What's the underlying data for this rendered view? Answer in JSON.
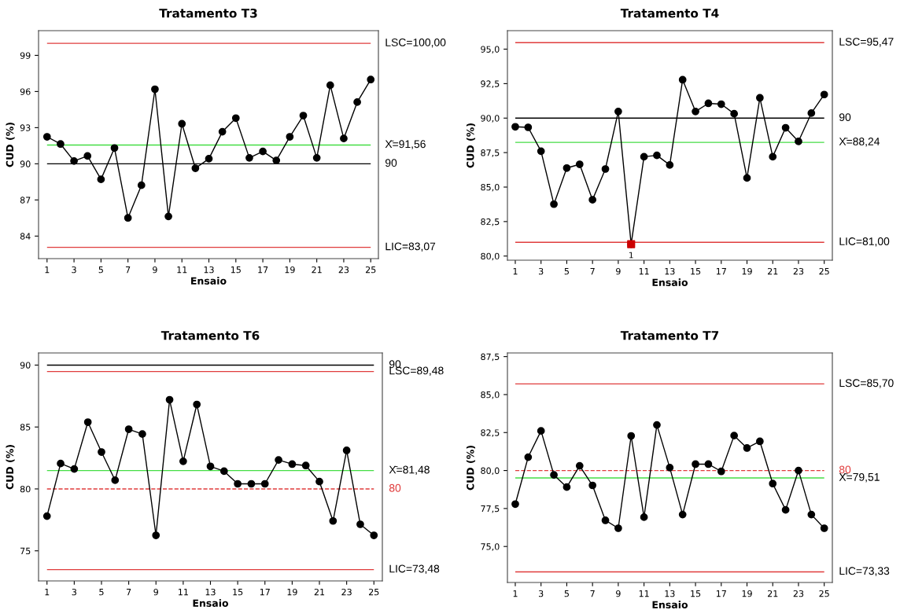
{
  "chart_data": [
    {
      "type": "line",
      "title": "Tratamento T3",
      "xlabel": "Ensaio",
      "ylabel": "CUD (%)",
      "x": [
        1,
        2,
        3,
        4,
        5,
        6,
        7,
        8,
        9,
        10,
        11,
        12,
        13,
        14,
        15,
        16,
        17,
        18,
        19,
        20,
        21,
        22,
        23,
        24,
        25
      ],
      "marker": "circle",
      "grid": false,
      "legend": false,
      "series": [
        {
          "color": "#000000",
          "values": [
            92.24,
            91.64,
            90.23,
            90.65,
            88.71,
            91.31,
            85.51,
            88.22,
            96.19,
            85.63,
            93.32,
            89.63,
            90.42,
            92.66,
            93.79,
            90.49,
            91.03,
            90.28,
            92.24,
            94.0,
            90.49,
            96.52,
            92.1,
            95.12,
            96.99
          ]
        }
      ],
      "xlim": [
        0.37,
        25.57
      ],
      "xticks": [
        1,
        3,
        5,
        7,
        9,
        11,
        13,
        15,
        17,
        19,
        21,
        23,
        25
      ],
      "ylim": [
        82.13,
        101.05
      ],
      "yticks": [
        84,
        87,
        90,
        93,
        96,
        99
      ],
      "ref_lines": [
        {
          "axis": "y",
          "value": 100.0,
          "label": "LSC=100,00",
          "color": "#e03c3c",
          "line_style": "solid"
        },
        {
          "axis": "y",
          "value": 91.56,
          "label": "X̄=91,56",
          "color": "#44dd44",
          "line_style": "solid"
        },
        {
          "axis": "y",
          "value": 90,
          "label": "90",
          "color": "#000000",
          "line_style": "solid"
        },
        {
          "axis": "y",
          "value": 83.07,
          "label": "LIC=83,07",
          "color": "#e03c3c",
          "line_style": "solid"
        }
      ]
    },
    {
      "type": "line",
      "title": "Tratamento T4",
      "xlabel": "Ensaio",
      "ylabel": "CUD (%)",
      "x": [
        1,
        2,
        3,
        4,
        5,
        6,
        7,
        8,
        9,
        10,
        11,
        12,
        13,
        14,
        15,
        16,
        17,
        18,
        19,
        20,
        21,
        22,
        23,
        24,
        25
      ],
      "marker": "circle",
      "grid": false,
      "legend": false,
      "series": [
        {
          "color": "#000000",
          "values": [
            89.37,
            89.33,
            87.6,
            83.76,
            86.38,
            86.65,
            84.08,
            86.31,
            90.48,
            80.86,
            87.2,
            87.3,
            86.6,
            92.78,
            90.48,
            91.07,
            91.01,
            90.32,
            85.66,
            91.47,
            87.2,
            89.3,
            88.31,
            90.36,
            91.71
          ]
        },
        {
          "type": "scatter",
          "marker": "square",
          "color": "#cc0000",
          "x": [
            10
          ],
          "values": [
            80.86
          ]
        }
      ],
      "annotations": [
        {
          "text": "1",
          "x": 10,
          "y": 80.86
        }
      ],
      "xlim": [
        0.39,
        25.63
      ],
      "xticks": [
        1,
        3,
        5,
        7,
        9,
        11,
        13,
        15,
        17,
        19,
        21,
        23,
        25
      ],
      "ylim": [
        79.7,
        96.34
      ],
      "yticks": [
        {
          "value": 80,
          "label": "80,0"
        },
        {
          "value": 82.5,
          "label": "82,5"
        },
        {
          "value": 85,
          "label": "85,0"
        },
        {
          "value": 87.5,
          "label": "87,5"
        },
        {
          "value": 90,
          "label": "90,0"
        },
        {
          "value": 92.5,
          "label": "92,5"
        },
        {
          "value": 95,
          "label": "95,0"
        }
      ],
      "ref_lines": [
        {
          "axis": "y",
          "value": 95.47,
          "label": "LSC=95,47",
          "color": "#e03c3c",
          "line_style": "solid"
        },
        {
          "axis": "y",
          "value": 90,
          "label": "90",
          "color": "#000000",
          "line_style": "solid"
        },
        {
          "axis": "y",
          "value": 88.24,
          "label": "X̄=88,24",
          "color": "#44dd44",
          "line_style": "solid"
        },
        {
          "axis": "y",
          "value": 81.0,
          "label": "LIC=81,00",
          "color": "#e03c3c",
          "line_style": "solid"
        }
      ]
    },
    {
      "type": "line",
      "title": "Tratamento T6",
      "xlabel": "Ensaio",
      "ylabel": "CUD (%)",
      "x": [
        1,
        2,
        3,
        4,
        5,
        6,
        7,
        8,
        9,
        10,
        11,
        12,
        13,
        14,
        15,
        16,
        17,
        18,
        19,
        20,
        21,
        22,
        23,
        24,
        25
      ],
      "marker": "circle",
      "grid": false,
      "legend": false,
      "series": [
        {
          "color": "#000000",
          "values": [
            77.8,
            82.05,
            81.61,
            85.39,
            82.98,
            80.7,
            84.82,
            84.43,
            76.25,
            87.2,
            82.23,
            86.82,
            81.82,
            81.43,
            80.41,
            80.41,
            80.41,
            82.34,
            82.0,
            81.89,
            80.59,
            77.41,
            83.11,
            77.14,
            76.25
          ]
        }
      ],
      "xlim": [
        0.38,
        25.62
      ],
      "xticks": [
        1,
        3,
        5,
        7,
        9,
        11,
        13,
        15,
        17,
        19,
        21,
        23,
        25
      ],
      "ylim": [
        72.57,
        90.98
      ],
      "yticks": [
        75,
        80,
        85,
        90
      ],
      "ref_lines": [
        {
          "axis": "y",
          "value": 90,
          "label": "90",
          "color": "#000000",
          "line_style": "solid"
        },
        {
          "axis": "y",
          "value": 89.48,
          "label": "LSC=89,48",
          "color": "#e03c3c",
          "line_style": "solid"
        },
        {
          "axis": "y",
          "value": 81.48,
          "label": "X̄=81,48",
          "color": "#44dd44",
          "line_style": "solid"
        },
        {
          "axis": "y",
          "value": 80,
          "label": "80",
          "color": "#e03c3c",
          "line_style": "dashed"
        },
        {
          "axis": "y",
          "value": 73.48,
          "label": "LIC=73,48",
          "color": "#e03c3c",
          "line_style": "solid"
        }
      ]
    },
    {
      "type": "line",
      "title": "Tratamento T7",
      "xlabel": "Ensaio",
      "ylabel": "CUD (%)",
      "x": [
        1,
        2,
        3,
        4,
        5,
        6,
        7,
        8,
        9,
        10,
        11,
        12,
        13,
        14,
        15,
        16,
        17,
        18,
        19,
        20,
        21,
        22,
        23,
        24,
        25
      ],
      "marker": "circle",
      "grid": false,
      "legend": false,
      "series": [
        {
          "color": "#000000",
          "values": [
            77.79,
            80.88,
            82.61,
            79.71,
            78.91,
            80.31,
            79.02,
            76.72,
            76.2,
            82.28,
            76.93,
            83.0,
            80.19,
            77.1,
            80.42,
            80.42,
            79.94,
            82.3,
            81.48,
            81.92,
            79.14,
            77.41,
            80.0,
            77.1,
            76.2
          ]
        }
      ],
      "xlim": [
        0.39,
        25.63
      ],
      "xticks": [
        1,
        3,
        5,
        7,
        9,
        11,
        13,
        15,
        17,
        19,
        21,
        23,
        25
      ],
      "ylim": [
        72.63,
        87.74
      ],
      "yticks": [
        {
          "value": 75,
          "label": "75,0"
        },
        {
          "value": 77.5,
          "label": "77,5"
        },
        {
          "value": 80,
          "label": "80,0"
        },
        {
          "value": 82.5,
          "label": "82,5"
        },
        {
          "value": 85,
          "label": "85,0"
        },
        {
          "value": 87.5,
          "label": "87,5"
        }
      ],
      "ref_lines": [
        {
          "axis": "y",
          "value": 85.7,
          "label": "LSC=85,70",
          "color": "#e03c3c",
          "line_style": "solid"
        },
        {
          "axis": "y",
          "value": 80,
          "label": "80",
          "color": "#e03c3c",
          "line_style": "dashed"
        },
        {
          "axis": "y",
          "value": 79.51,
          "label": "X̄=79,51",
          "color": "#44dd44",
          "line_style": "solid"
        },
        {
          "axis": "y",
          "value": 73.33,
          "label": "LIC=73,33",
          "color": "#e03c3c",
          "line_style": "solid"
        }
      ]
    }
  ]
}
